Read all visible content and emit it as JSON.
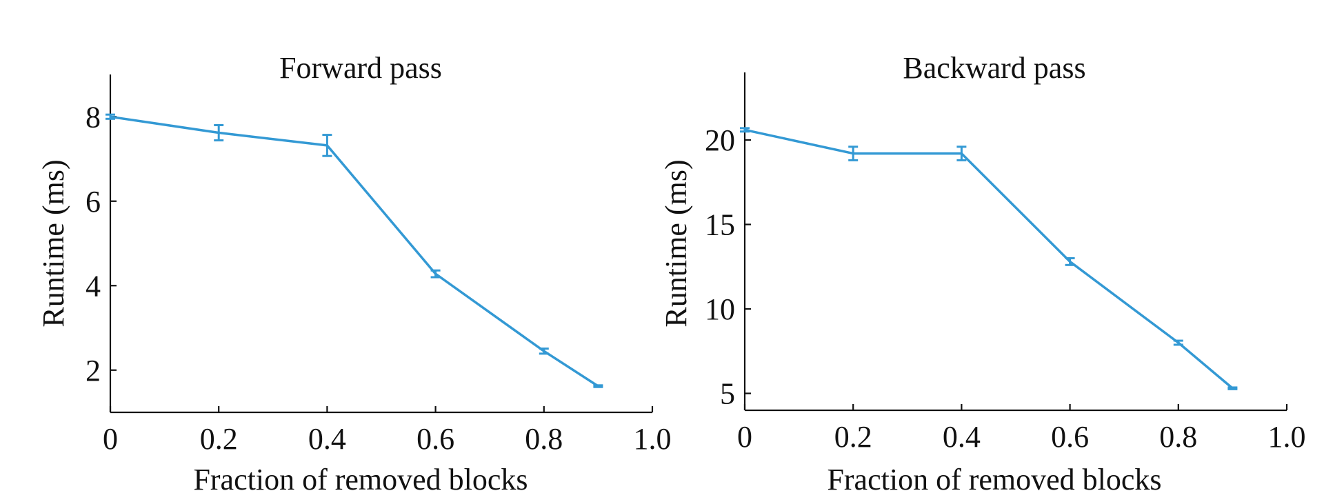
{
  "chart_data": [
    {
      "type": "line",
      "title": "Forward pass",
      "xlabel": "Fraction of removed blocks",
      "ylabel": "Runtime (ms)",
      "xlim": [
        0,
        1.0
      ],
      "ylim": [
        1,
        9
      ],
      "xticks": [
        0,
        0.2,
        0.4,
        0.6,
        0.8,
        1.0
      ],
      "xtick_labels": [
        "0",
        "0.2",
        "0.4",
        "0.6",
        "0.8",
        "1.0"
      ],
      "yticks": [
        2,
        4,
        6,
        8
      ],
      "ytick_labels": [
        "2",
        "4",
        "6",
        "8"
      ],
      "grid": false,
      "series": [
        {
          "color": "#3399d4",
          "x": [
            0,
            0.2,
            0.4,
            0.6,
            0.8,
            0.9
          ],
          "y": [
            8.0,
            7.62,
            7.32,
            4.28,
            2.45,
            1.62
          ],
          "err": [
            0.05,
            0.18,
            0.25,
            0.08,
            0.06,
            0.02
          ]
        }
      ]
    },
    {
      "type": "line",
      "title": "Backward pass",
      "xlabel": "Fraction of removed blocks",
      "ylabel": "Runtime (ms)",
      "xlim": [
        0,
        1.0
      ],
      "ylim": [
        4,
        24
      ],
      "xticks": [
        0,
        0.2,
        0.4,
        0.6,
        0.8,
        1.0
      ],
      "xtick_labels": [
        "0",
        "0.2",
        "0.4",
        "0.6",
        "0.8",
        "1.0"
      ],
      "yticks": [
        5,
        10,
        15,
        20
      ],
      "ytick_labels": [
        "5",
        "10",
        "15",
        "20"
      ],
      "grid": false,
      "series": [
        {
          "color": "#3399d4",
          "x": [
            0,
            0.2,
            0.4,
            0.6,
            0.8,
            0.9
          ],
          "y": [
            20.6,
            19.2,
            19.2,
            12.8,
            8.0,
            5.3
          ],
          "err": [
            0.1,
            0.4,
            0.4,
            0.2,
            0.12,
            0.05
          ]
        }
      ]
    }
  ]
}
